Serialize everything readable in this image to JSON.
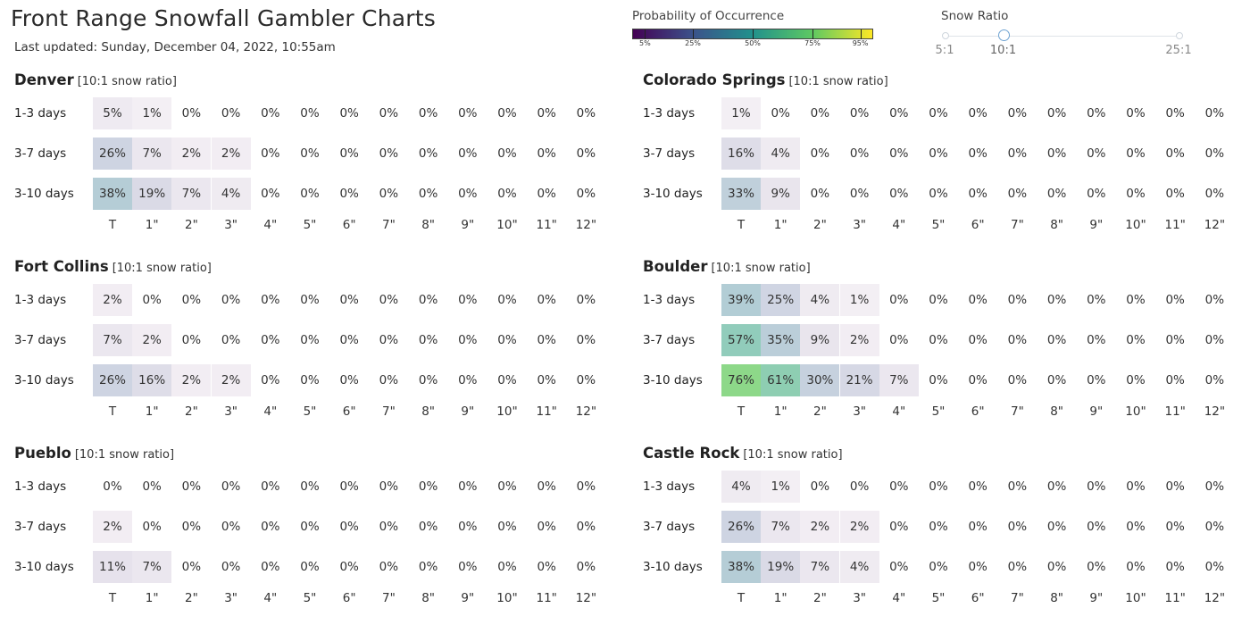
{
  "header": {
    "title": "Front Range Snowfall Gambler Charts",
    "updated": "Last updated: Sunday, December 04, 2022, 10:55am"
  },
  "legend": {
    "title": "Probability of Occurrence",
    "ticks": [
      "5%",
      "25%",
      "50%",
      "75%",
      "95%"
    ],
    "tick_values": [
      5,
      25,
      50,
      75,
      95
    ],
    "colormap": "viridis",
    "colors": [
      "#440154",
      "#3b528b",
      "#21918c",
      "#5ec962",
      "#fde725"
    ]
  },
  "snow_ratio": {
    "title": "Snow Ratio",
    "labels": [
      "5:1",
      "10:1",
      "25:1"
    ],
    "selected": "10:1",
    "selected_value": 10,
    "min": 5,
    "max": 25
  },
  "chart_data": {
    "type": "heatmap",
    "columns": [
      "T",
      "1\"",
      "2\"",
      "3\"",
      "4\"",
      "5\"",
      "6\"",
      "7\"",
      "8\"",
      "9\"",
      "10\"",
      "11\"",
      "12\""
    ],
    "rows": [
      "1-3 days",
      "3-7 days",
      "3-10 days"
    ],
    "ratio_note": "[10:1 snow ratio]",
    "cities": [
      {
        "name": "Denver",
        "values": [
          [
            5,
            1,
            0,
            0,
            0,
            0,
            0,
            0,
            0,
            0,
            0,
            0,
            0
          ],
          [
            26,
            7,
            2,
            2,
            0,
            0,
            0,
            0,
            0,
            0,
            0,
            0,
            0
          ],
          [
            38,
            19,
            7,
            4,
            0,
            0,
            0,
            0,
            0,
            0,
            0,
            0,
            0
          ]
        ]
      },
      {
        "name": "Colorado Springs",
        "values": [
          [
            1,
            0,
            0,
            0,
            0,
            0,
            0,
            0,
            0,
            0,
            0,
            0,
            0
          ],
          [
            16,
            4,
            0,
            0,
            0,
            0,
            0,
            0,
            0,
            0,
            0,
            0,
            0
          ],
          [
            33,
            9,
            0,
            0,
            0,
            0,
            0,
            0,
            0,
            0,
            0,
            0,
            0
          ]
        ]
      },
      {
        "name": "Fort Collins",
        "values": [
          [
            2,
            0,
            0,
            0,
            0,
            0,
            0,
            0,
            0,
            0,
            0,
            0,
            0
          ],
          [
            7,
            2,
            0,
            0,
            0,
            0,
            0,
            0,
            0,
            0,
            0,
            0,
            0
          ],
          [
            26,
            16,
            2,
            2,
            0,
            0,
            0,
            0,
            0,
            0,
            0,
            0,
            0
          ]
        ]
      },
      {
        "name": "Boulder",
        "values": [
          [
            39,
            25,
            4,
            1,
            0,
            0,
            0,
            0,
            0,
            0,
            0,
            0,
            0
          ],
          [
            57,
            35,
            9,
            2,
            0,
            0,
            0,
            0,
            0,
            0,
            0,
            0,
            0
          ],
          [
            76,
            61,
            30,
            21,
            7,
            0,
            0,
            0,
            0,
            0,
            0,
            0,
            0
          ]
        ]
      },
      {
        "name": "Pueblo",
        "values": [
          [
            0,
            0,
            0,
            0,
            0,
            0,
            0,
            0,
            0,
            0,
            0,
            0,
            0
          ],
          [
            2,
            0,
            0,
            0,
            0,
            0,
            0,
            0,
            0,
            0,
            0,
            0,
            0
          ],
          [
            11,
            7,
            0,
            0,
            0,
            0,
            0,
            0,
            0,
            0,
            0,
            0,
            0
          ]
        ]
      },
      {
        "name": "Castle Rock",
        "values": [
          [
            4,
            1,
            0,
            0,
            0,
            0,
            0,
            0,
            0,
            0,
            0,
            0,
            0
          ],
          [
            26,
            7,
            2,
            2,
            0,
            0,
            0,
            0,
            0,
            0,
            0,
            0,
            0
          ],
          [
            38,
            19,
            7,
            4,
            0,
            0,
            0,
            0,
            0,
            0,
            0,
            0,
            0
          ]
        ]
      }
    ]
  }
}
